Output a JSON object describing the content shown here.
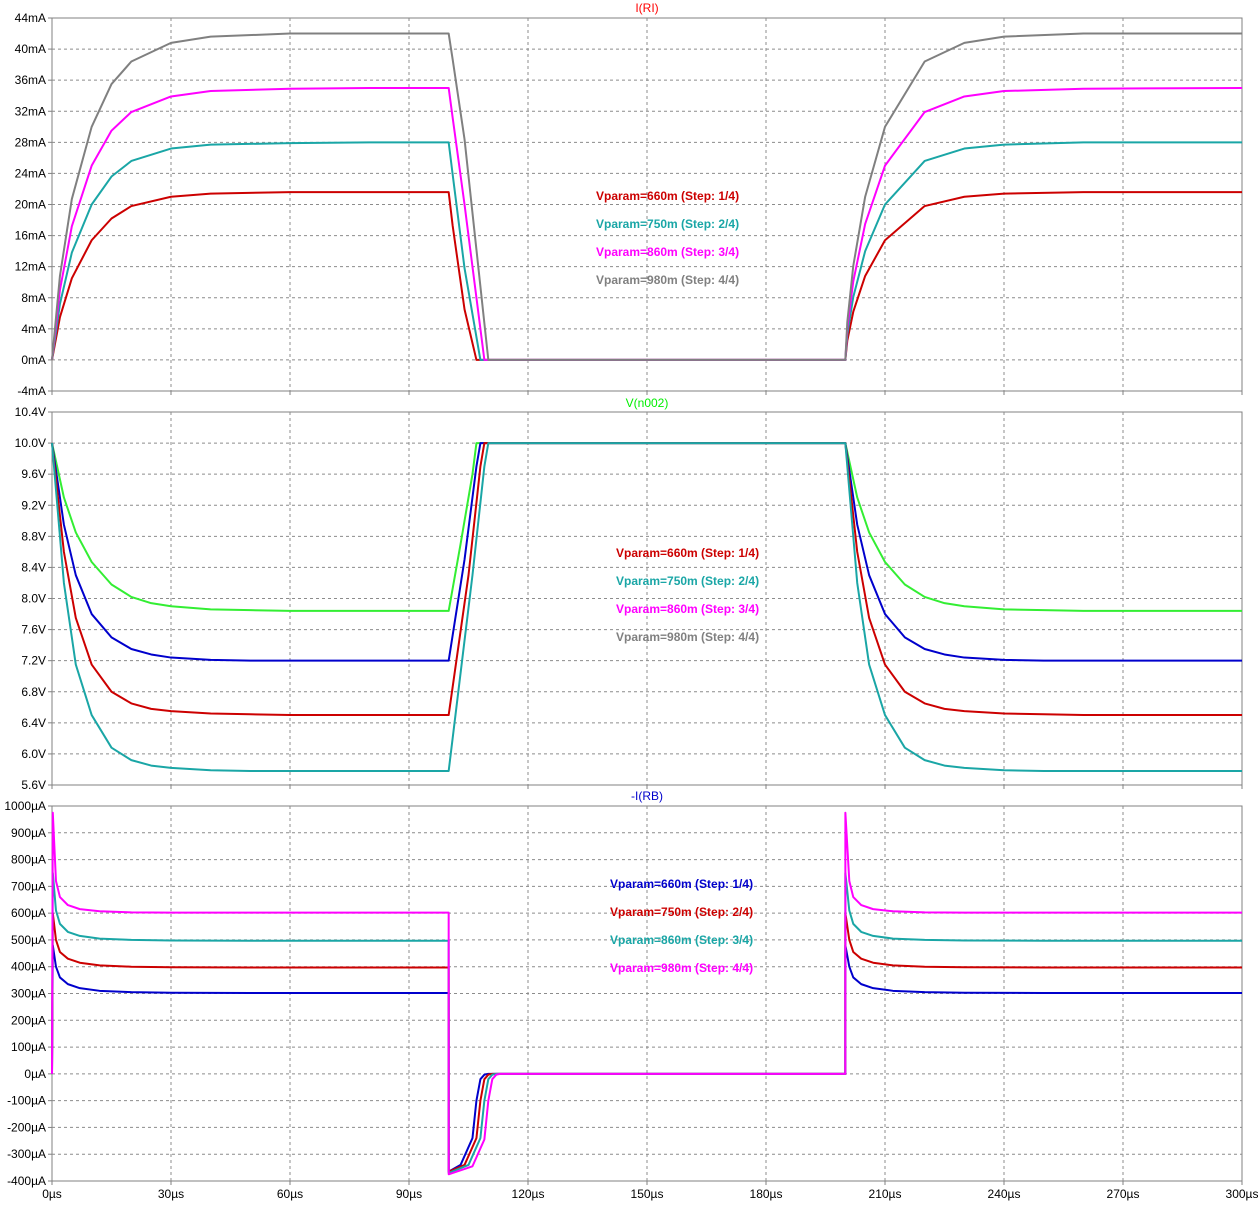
{
  "x_ticks": [
    "0µs",
    "30µs",
    "60µs",
    "90µs",
    "120µs",
    "150µs",
    "180µs",
    "210µs",
    "240µs",
    "270µs",
    "300µs"
  ],
  "colors": {
    "red": "#cc0000",
    "teal": "#1aa6a6",
    "magenta": "#ff00ff",
    "gray": "#808080",
    "green": "#33ee33",
    "blue": "#0000cc",
    "grid": "#8c8c8c",
    "frame": "#808080"
  },
  "chart_data": [
    {
      "type": "line",
      "title": "I(RI)",
      "title_color": "#ff0000",
      "ylim": [
        -4,
        44
      ],
      "y_ticks": [
        "44mA",
        "40mA",
        "36mA",
        "32mA",
        "28mA",
        "24mA",
        "20mA",
        "16mA",
        "12mA",
        "8mA",
        "4mA",
        "0mA",
        "-4mA"
      ],
      "xlim": [
        0,
        300
      ],
      "x_unit": "µs",
      "legend": [
        {
          "text": "Vparam=660m  (Step: 1/4)",
          "color": "#cc0000"
        },
        {
          "text": "Vparam=750m  (Step: 2/4)",
          "color": "#1aa6a6"
        },
        {
          "text": "Vparam=860m  (Step: 3/4)",
          "color": "#ff00ff"
        },
        {
          "text": "Vparam=980m  (Step: 4/4)",
          "color": "#808080"
        }
      ],
      "series": [
        {
          "color": "#cc0000",
          "x": [
            0,
            2,
            5,
            10,
            15,
            20,
            30,
            40,
            60,
            80,
            100,
            101,
            104,
            107,
            200,
            200.5,
            202,
            205,
            210,
            220,
            230,
            240,
            260,
            300
          ],
          "y": [
            0,
            5.5,
            10.5,
            15.4,
            18.2,
            19.8,
            21,
            21.4,
            21.6,
            21.6,
            21.6,
            17.3,
            6.5,
            0,
            0,
            2.5,
            6.2,
            10.8,
            15.4,
            19.8,
            21,
            21.4,
            21.6,
            21.6
          ]
        },
        {
          "color": "#1aa6a6",
          "x": [
            0,
            2,
            5,
            10,
            15,
            20,
            30,
            40,
            60,
            80,
            100,
            101,
            104,
            108,
            200,
            200.5,
            202,
            205,
            210,
            220,
            230,
            240,
            260,
            300
          ],
          "y": [
            0,
            7.2,
            13.8,
            20,
            23.6,
            25.6,
            27.2,
            27.7,
            27.9,
            28,
            28,
            23.9,
            11.8,
            0,
            0,
            3.3,
            8.1,
            14,
            20,
            25.6,
            27.2,
            27.7,
            28,
            28
          ]
        },
        {
          "color": "#ff00ff",
          "x": [
            0,
            2,
            5,
            10,
            15,
            20,
            30,
            40,
            60,
            80,
            100,
            101,
            104,
            109,
            200,
            200.5,
            202,
            205,
            210,
            220,
            230,
            240,
            260,
            300
          ],
          "y": [
            0,
            9,
            17.2,
            25,
            29.5,
            31.9,
            33.9,
            34.6,
            34.9,
            35,
            35,
            31.2,
            20,
            0,
            0,
            4.1,
            10.1,
            17.5,
            25,
            31.9,
            33.9,
            34.6,
            34.9,
            35
          ]
        },
        {
          "color": "#808080",
          "x": [
            0,
            2,
            5,
            10,
            15,
            20,
            30,
            40,
            60,
            80,
            100,
            101,
            104,
            110,
            200,
            200.5,
            202,
            205,
            210,
            220,
            230,
            240,
            260,
            300
          ],
          "y": [
            0,
            10.8,
            20.7,
            30,
            35.5,
            38.4,
            40.8,
            41.6,
            42,
            42,
            42,
            38.7,
            28.4,
            0,
            0,
            4.9,
            12.1,
            21,
            30,
            38.4,
            40.8,
            41.6,
            42,
            42
          ]
        }
      ]
    },
    {
      "type": "line",
      "title": "V(n002)",
      "title_color": "#00ee00",
      "ylim": [
        5.6,
        10.4
      ],
      "y_ticks": [
        "10.4V",
        "10.0V",
        "9.6V",
        "9.2V",
        "8.8V",
        "8.4V",
        "8.0V",
        "7.6V",
        "7.2V",
        "6.8V",
        "6.4V",
        "6.0V",
        "5.6V"
      ],
      "xlim": [
        0,
        300
      ],
      "x_unit": "µs",
      "legend": [
        {
          "text": "Vparam=660m  (Step: 1/4)",
          "color": "#cc0000"
        },
        {
          "text": "Vparam=750m  (Step: 2/4)",
          "color": "#1aa6a6"
        },
        {
          "text": "Vparam=860m  (Step: 3/4)",
          "color": "#ff00ff"
        },
        {
          "text": "Vparam=980m  (Step: 4/4)",
          "color": "#808080"
        }
      ],
      "series": [
        {
          "color": "#33ee33",
          "x": [
            0,
            3,
            6,
            10,
            15,
            20,
            25,
            30,
            40,
            50,
            60,
            80,
            100,
            103,
            106,
            107,
            200,
            203,
            206,
            210,
            215,
            220,
            225,
            230,
            240,
            250,
            260,
            300
          ],
          "y": [
            10,
            9.3,
            8.85,
            8.47,
            8.18,
            8.02,
            7.94,
            7.9,
            7.86,
            7.85,
            7.84,
            7.84,
            7.84,
            8.7,
            9.6,
            10,
            10,
            9.3,
            8.85,
            8.47,
            8.18,
            8.02,
            7.94,
            7.9,
            7.86,
            7.85,
            7.84,
            7.84
          ]
        },
        {
          "color": "#0000cc",
          "x": [
            0,
            3,
            6,
            10,
            15,
            20,
            25,
            30,
            40,
            50,
            60,
            80,
            100,
            104,
            107,
            108,
            200,
            203,
            206,
            210,
            215,
            220,
            225,
            230,
            240,
            250,
            260,
            300
          ],
          "y": [
            10,
            8.95,
            8.3,
            7.8,
            7.5,
            7.35,
            7.28,
            7.24,
            7.21,
            7.2,
            7.2,
            7.2,
            7.2,
            8.5,
            9.7,
            10,
            10,
            8.95,
            8.3,
            7.8,
            7.5,
            7.35,
            7.28,
            7.24,
            7.21,
            7.2,
            7.2,
            7.2
          ]
        },
        {
          "color": "#cc0000",
          "x": [
            0,
            3,
            6,
            10,
            15,
            20,
            25,
            30,
            40,
            50,
            60,
            80,
            100,
            105,
            108,
            109,
            200,
            203,
            206,
            210,
            215,
            220,
            225,
            230,
            240,
            250,
            260,
            300
          ],
          "y": [
            10,
            8.6,
            7.75,
            7.15,
            6.8,
            6.65,
            6.58,
            6.55,
            6.52,
            6.51,
            6.5,
            6.5,
            6.5,
            8.3,
            9.7,
            10,
            10,
            8.6,
            7.75,
            7.15,
            6.8,
            6.65,
            6.58,
            6.55,
            6.52,
            6.51,
            6.5,
            6.5
          ]
        },
        {
          "color": "#1aa6a6",
          "x": [
            0,
            3,
            6,
            10,
            15,
            20,
            25,
            30,
            40,
            50,
            60,
            80,
            100,
            106,
            109,
            110,
            200,
            203,
            206,
            210,
            215,
            220,
            225,
            230,
            240,
            250,
            260,
            300
          ],
          "y": [
            10,
            8.2,
            7.15,
            6.5,
            6.08,
            5.92,
            5.85,
            5.82,
            5.79,
            5.78,
            5.78,
            5.78,
            5.78,
            8.3,
            9.7,
            10,
            10,
            8.2,
            7.15,
            6.5,
            6.08,
            5.92,
            5.85,
            5.82,
            5.79,
            5.78,
            5.78,
            5.78
          ]
        }
      ]
    },
    {
      "type": "line",
      "title": "-I(RB)",
      "title_color": "#0000cc",
      "ylim": [
        -400,
        1000
      ],
      "y_ticks": [
        "1000µA",
        "900µA",
        "800µA",
        "700µA",
        "600µA",
        "500µA",
        "400µA",
        "300µA",
        "200µA",
        "100µA",
        "0µA",
        "-100µA",
        "-200µA",
        "-300µA",
        "-400µA"
      ],
      "xlim": [
        0,
        300
      ],
      "x_unit": "µs",
      "legend": [
        {
          "text": "Vparam=660m  (Step: 1/4)",
          "color": "#0000cc"
        },
        {
          "text": "Vparam=750m  (Step: 2/4)",
          "color": "#cc0000"
        },
        {
          "text": "Vparam=860m  (Step: 3/4)",
          "color": "#1aa6a6"
        },
        {
          "text": "Vparam=980m  (Step: 4/4)",
          "color": "#ff00ff"
        }
      ],
      "series": [
        {
          "color": "#0000cc",
          "x": [
            0,
            0.2,
            1,
            2,
            4,
            7,
            12,
            20,
            30,
            50,
            100,
            100.01,
            103,
            106,
            107,
            108,
            109,
            110,
            112,
            200,
            200.01,
            201,
            202,
            204,
            207,
            212,
            220,
            230,
            250,
            300
          ],
          "y": [
            0,
            480,
            400,
            360,
            335,
            320,
            310,
            305,
            303,
            302,
            302,
            -365,
            -340,
            -240,
            -100,
            -20,
            -3,
            0,
            0,
            0,
            480,
            400,
            360,
            335,
            320,
            310,
            305,
            303,
            302,
            302
          ]
        },
        {
          "color": "#cc0000",
          "x": [
            0,
            0.2,
            1,
            2,
            4,
            7,
            12,
            20,
            30,
            50,
            100,
            100.01,
            104,
            107,
            108,
            109,
            110,
            111,
            113,
            200,
            200.01,
            201,
            202,
            204,
            207,
            212,
            220,
            230,
            250,
            300
          ],
          "y": [
            0,
            600,
            500,
            455,
            430,
            415,
            405,
            400,
            398,
            397,
            397,
            -365,
            -340,
            -240,
            -100,
            -20,
            -3,
            0,
            0,
            0,
            600,
            500,
            455,
            430,
            415,
            405,
            400,
            398,
            397,
            397
          ]
        },
        {
          "color": "#1aa6a6",
          "x": [
            0,
            0.2,
            1,
            2,
            4,
            7,
            12,
            20,
            30,
            50,
            100,
            100.01,
            105,
            108,
            109,
            110,
            111,
            112,
            114,
            200,
            200.01,
            201,
            202,
            204,
            207,
            212,
            220,
            230,
            250,
            300
          ],
          "y": [
            0,
            750,
            610,
            560,
            530,
            515,
            505,
            500,
            498,
            497,
            497,
            -370,
            -340,
            -240,
            -100,
            -20,
            -3,
            0,
            0,
            0,
            750,
            610,
            560,
            530,
            515,
            505,
            500,
            498,
            497,
            497
          ]
        },
        {
          "color": "#ff00ff",
          "x": [
            0,
            0.2,
            1,
            2,
            4,
            7,
            12,
            20,
            30,
            50,
            100,
            100.01,
            106,
            109,
            110,
            111,
            112,
            113,
            115,
            200,
            200.01,
            201,
            202,
            204,
            207,
            212,
            220,
            230,
            250,
            300
          ],
          "y": [
            0,
            975,
            720,
            660,
            630,
            615,
            607,
            603,
            602,
            602,
            602,
            -375,
            -345,
            -245,
            -100,
            -20,
            -3,
            0,
            0,
            0,
            975,
            720,
            660,
            630,
            615,
            607,
            603,
            602,
            602,
            602
          ]
        }
      ]
    }
  ]
}
